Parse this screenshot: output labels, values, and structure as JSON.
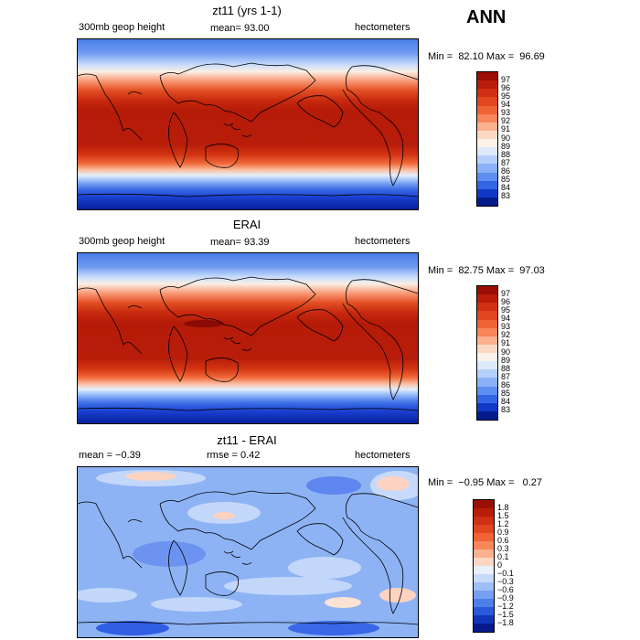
{
  "season": "ANN",
  "panels": [
    {
      "title": "zt11 (yrs 1-1)",
      "left_label": "300mb geop height",
      "mean_label": "mean=  93.00",
      "units": "hectometers",
      "minmax": "Min =  82.10 Max =  96.69",
      "colorbar": {
        "labels": [
          "97",
          "96",
          "95",
          "94",
          "93",
          "92",
          "91",
          "90",
          "89",
          "88",
          "87",
          "86",
          "85",
          "84",
          "83"
        ],
        "colors": [
          "#9a0e06",
          "#b81d0a",
          "#cf2f12",
          "#e04620",
          "#ef6334",
          "#f7875a",
          "#fbb08f",
          "#fcd8c4",
          "#fdf2ea",
          "#dceafc",
          "#b6d0fb",
          "#8ab1f7",
          "#5e8ef0",
          "#3266e5",
          "#1238c7",
          "#061a8c"
        ]
      }
    },
    {
      "title": "ERAI",
      "left_label": "300mb geop height",
      "mean_label": "mean=  93.39",
      "units": "hectometers",
      "minmax": "Min =  82.75 Max =  97.03",
      "colorbar": {
        "labels": [
          "97",
          "96",
          "95",
          "94",
          "93",
          "92",
          "91",
          "90",
          "89",
          "88",
          "87",
          "86",
          "85",
          "84",
          "83"
        ],
        "colors": [
          "#9a0e06",
          "#b81d0a",
          "#cf2f12",
          "#e04620",
          "#ef6334",
          "#f7875a",
          "#fbb08f",
          "#fcd8c4",
          "#fdf2ea",
          "#dceafc",
          "#b6d0fb",
          "#8ab1f7",
          "#5e8ef0",
          "#3266e5",
          "#1238c7",
          "#061a8c"
        ]
      }
    },
    {
      "title": "zt11 - ERAI",
      "left_label": "mean =  −0.39",
      "mean_label": "rmse =   0.42",
      "units": "hectometers",
      "minmax": "Min =  −0.95 Max =   0.27",
      "colorbar": {
        "labels": [
          "1.8",
          "1.5",
          "1.2",
          "0.9",
          "0.6",
          "0.3",
          "0.1",
          "0",
          "−0.1",
          "−0.3",
          "−0.6",
          "−0.9",
          "−1.2",
          "−1.5",
          "−1.8"
        ],
        "colors": [
          "#9a0e06",
          "#b81d0a",
          "#cf2f12",
          "#e04620",
          "#ef6334",
          "#f7875a",
          "#fbb08f",
          "#fcd8c4",
          "#e8f0fc",
          "#c6dafb",
          "#9ebef8",
          "#779ff2",
          "#4c7fea",
          "#2a5ad9",
          "#1234b8",
          "#061a8c"
        ]
      }
    }
  ]
}
